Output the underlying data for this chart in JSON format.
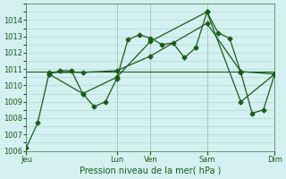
{
  "bg_color": "#d4f0f0",
  "grid_color": "#b0d8d8",
  "line_color": "#1a5c1a",
  "xlabel": "Pression niveau de la mer( hPa )",
  "ylim": [
    1006,
    1015
  ],
  "yticks": [
    1006,
    1007,
    1008,
    1009,
    1010,
    1011,
    1012,
    1013,
    1014
  ],
  "xtick_labels": [
    "Jeu",
    "Lun",
    "Ven",
    "Sam",
    "Dim"
  ],
  "xtick_positions": [
    0,
    8,
    11,
    16,
    22
  ],
  "vline_positions": [
    0,
    8,
    11,
    16,
    22
  ],
  "series1_x": [
    0,
    1,
    2,
    3,
    4,
    5,
    6,
    7,
    8,
    9,
    10,
    11,
    12,
    13,
    14,
    15,
    16,
    17,
    18,
    19,
    20,
    21,
    22
  ],
  "series1_y": [
    1006.2,
    1007.7,
    1010.7,
    1010.9,
    1010.9,
    1009.5,
    1008.7,
    1009.0,
    1010.4,
    1012.8,
    1013.1,
    1012.9,
    1012.5,
    1012.6,
    1011.7,
    1012.3,
    1014.5,
    1013.2,
    1012.9,
    1010.8,
    1008.3,
    1008.5,
    1010.7
  ],
  "series2_x": [
    2,
    5,
    8,
    11,
    16,
    19,
    22
  ],
  "series2_y": [
    1010.7,
    1009.5,
    1010.5,
    1012.7,
    1014.5,
    1009.0,
    1010.7
  ],
  "series3_x": [
    2,
    5,
    8,
    11,
    16,
    19,
    22
  ],
  "series3_y": [
    1010.8,
    1010.8,
    1010.9,
    1011.8,
    1013.8,
    1010.85,
    1010.7
  ],
  "hline_y": 1010.85,
  "hline_x_start": 0,
  "hline_x_end": 22
}
